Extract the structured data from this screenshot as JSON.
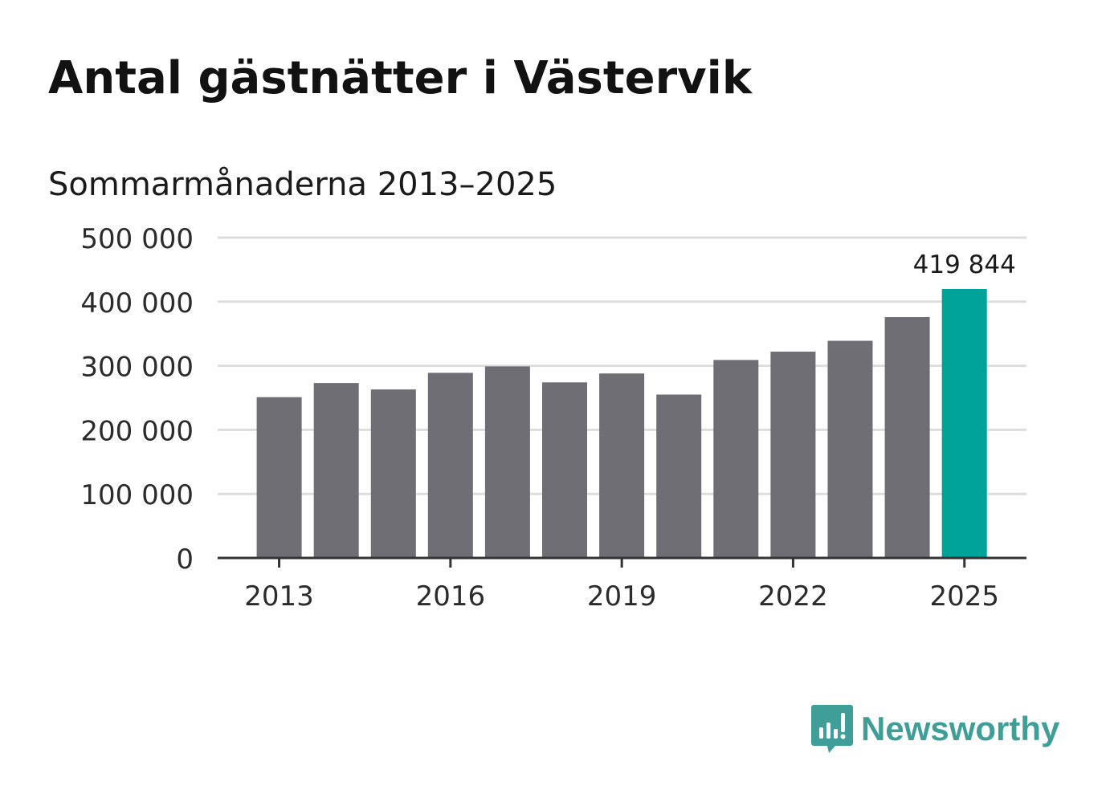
{
  "header": {
    "title": "Antal gästnätter i Västervik",
    "subtitle": "Sommarmånaderna 2013–2025"
  },
  "chart_data": {
    "type": "bar",
    "title": "Antal gästnätter i Västervik",
    "subtitle": "Sommarmånaderna 2013–2025",
    "xlabel": "",
    "ylabel": "",
    "categories": [
      "2013",
      "2014",
      "2015",
      "2016",
      "2017",
      "2018",
      "2019",
      "2020",
      "2021",
      "2022",
      "2023",
      "2024",
      "2025"
    ],
    "values": [
      251000,
      273000,
      263000,
      289000,
      299000,
      274000,
      288000,
      255000,
      309000,
      322000,
      339000,
      376000,
      419844
    ],
    "ylim": [
      0,
      500000
    ],
    "y_ticks": [
      "0",
      "100 000",
      "200 000",
      "300 000",
      "400 000",
      "500 000"
    ],
    "x_ticks": [
      "2013",
      "2016",
      "2019",
      "2022",
      "2025"
    ],
    "highlight_index": 12,
    "highlight_label": "419 844",
    "grid": true,
    "colors": {
      "bar": "#6f6e74",
      "highlight": "#00a398",
      "grid": "#dddddd",
      "axis": "#333333",
      "tick_text": "#2b2b2b"
    }
  },
  "logo": {
    "name": "Newsworthy",
    "icon": "newsworthy-logo-icon",
    "color": "#3f9e97"
  }
}
